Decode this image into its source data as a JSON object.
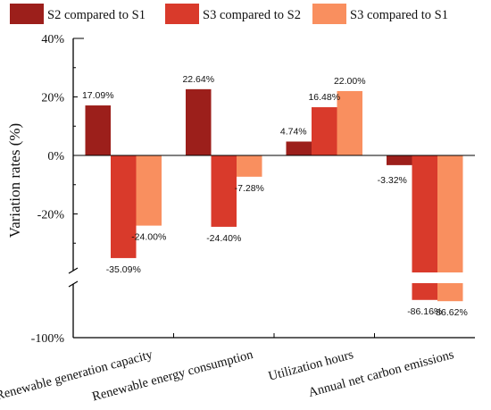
{
  "chart_data": {
    "type": "bar",
    "ylabel": "Variation rates (%)",
    "y_ticks": [
      "40%",
      "20%",
      "0%",
      "-20%",
      "-100%"
    ],
    "y_upper_range": [
      -40,
      40
    ],
    "y_lower_range": [
      -100,
      -80
    ],
    "axis_break": true,
    "legend_position": "top",
    "categories": [
      "Renewable generation capacity",
      "Renewable energy consumption",
      "Utilization hours",
      "Annual net carbon emissions"
    ],
    "series": [
      {
        "name": "S2 compared to S1",
        "color": "#9c1f1b",
        "values": [
          17.09,
          22.64,
          4.74,
          -3.32
        ],
        "labels": [
          "17.09%",
          "22.64%",
          "4.74%",
          "-3.32%"
        ]
      },
      {
        "name": "S3 compared to S2",
        "color": "#d93a2b",
        "values": [
          -35.09,
          -24.4,
          16.48,
          -86.16
        ],
        "labels": [
          "-35.09%",
          "-24.40%",
          "16.48%",
          "-86.16%"
        ]
      },
      {
        "name": "S3 compared to S1",
        "color": "#f98f5f",
        "values": [
          -24.0,
          -7.28,
          22.0,
          -86.62
        ],
        "labels": [
          "-24.00%",
          "-7.28%",
          "22.00%",
          "-86.62%"
        ]
      }
    ]
  }
}
